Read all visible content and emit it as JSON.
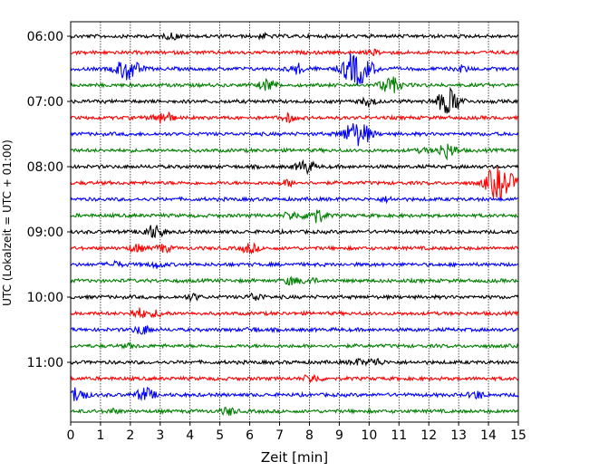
{
  "chart_data": {
    "type": "line",
    "title": "",
    "xlabel": "Zeit  [min]",
    "ylabel": "UTC (Lokalzeit = UTC + 01:00)",
    "xlim": [
      0,
      15
    ],
    "x_ticks": [
      "0",
      "1",
      "2",
      "3",
      "4",
      "5",
      "6",
      "7",
      "8",
      "9",
      "10",
      "11",
      "12",
      "13",
      "14",
      "15"
    ],
    "y_tick_labels": [
      "06:00",
      "07:00",
      "08:00",
      "09:00",
      "10:00",
      "11:00"
    ],
    "trace_interval_min": 15,
    "grid_x": true,
    "trace_colors": [
      "#000000",
      "#ff0000",
      "#0000ff",
      "#008000"
    ],
    "traces": [
      {
        "start": "06:00",
        "events": [
          [
            3.4,
            3
          ],
          [
            6.5,
            2
          ]
        ]
      },
      {
        "start": "06:15",
        "events": [
          [
            10.2,
            2
          ]
        ]
      },
      {
        "start": "06:30",
        "events": [
          [
            1.9,
            12
          ],
          [
            7.6,
            5
          ],
          [
            9.3,
            5
          ],
          [
            9.65,
            16
          ],
          [
            13.1,
            3
          ]
        ]
      },
      {
        "start": "06:45",
        "events": [
          [
            6.6,
            6
          ],
          [
            10.7,
            9
          ]
        ]
      },
      {
        "start": "07:00",
        "events": [
          [
            10.0,
            4
          ],
          [
            12.6,
            11
          ],
          [
            12.9,
            5
          ]
        ]
      },
      {
        "start": "07:15",
        "events": [
          [
            3.1,
            7
          ],
          [
            7.3,
            4
          ]
        ]
      },
      {
        "start": "07:30",
        "events": [
          [
            9.5,
            12
          ],
          [
            9.9,
            5
          ]
        ]
      },
      {
        "start": "07:45",
        "events": [
          [
            12.6,
            8
          ],
          [
            11.8,
            2
          ]
        ]
      },
      {
        "start": "08:00",
        "events": [
          [
            7.8,
            5
          ],
          [
            8.0,
            3
          ]
        ]
      },
      {
        "start": "08:15",
        "events": [
          [
            7.3,
            3
          ],
          [
            14.1,
            6
          ],
          [
            14.45,
            15
          ]
        ]
      },
      {
        "start": "08:30",
        "events": [
          [
            10.6,
            2
          ]
        ]
      },
      {
        "start": "08:45",
        "events": [
          [
            7.4,
            4
          ],
          [
            8.2,
            8
          ]
        ]
      },
      {
        "start": "09:00",
        "events": [
          [
            2.6,
            4
          ],
          [
            2.9,
            5
          ]
        ]
      },
      {
        "start": "09:15",
        "events": [
          [
            2.2,
            4
          ],
          [
            3.1,
            4
          ],
          [
            6.0,
            5
          ]
        ]
      },
      {
        "start": "09:30",
        "events": [
          [
            1.5,
            3
          ],
          [
            2.9,
            3
          ]
        ]
      },
      {
        "start": "09:45",
        "events": [
          [
            7.4,
            4
          ],
          [
            8.0,
            3
          ]
        ]
      },
      {
        "start": "10:00",
        "events": [
          [
            4.1,
            3
          ],
          [
            6.2,
            4
          ]
        ]
      },
      {
        "start": "10:15",
        "events": [
          [
            2.3,
            5
          ],
          [
            2.9,
            3
          ]
        ]
      },
      {
        "start": "10:30",
        "events": [
          [
            2.4,
            5
          ],
          [
            6.1,
            2
          ]
        ]
      },
      {
        "start": "10:45",
        "events": [
          [
            2.0,
            2
          ]
        ]
      },
      {
        "start": "11:00",
        "events": [
          [
            9.6,
            3
          ],
          [
            10.2,
            4
          ]
        ]
      },
      {
        "start": "11:15",
        "events": [
          [
            8.0,
            3
          ],
          [
            8.2,
            2
          ]
        ]
      },
      {
        "start": "11:30",
        "events": [
          [
            0.2,
            8
          ],
          [
            2.5,
            7
          ],
          [
            13.6,
            4
          ]
        ]
      },
      {
        "start": "11:45",
        "events": [
          [
            1.4,
            2
          ],
          [
            5.3,
            4
          ]
        ]
      }
    ]
  }
}
